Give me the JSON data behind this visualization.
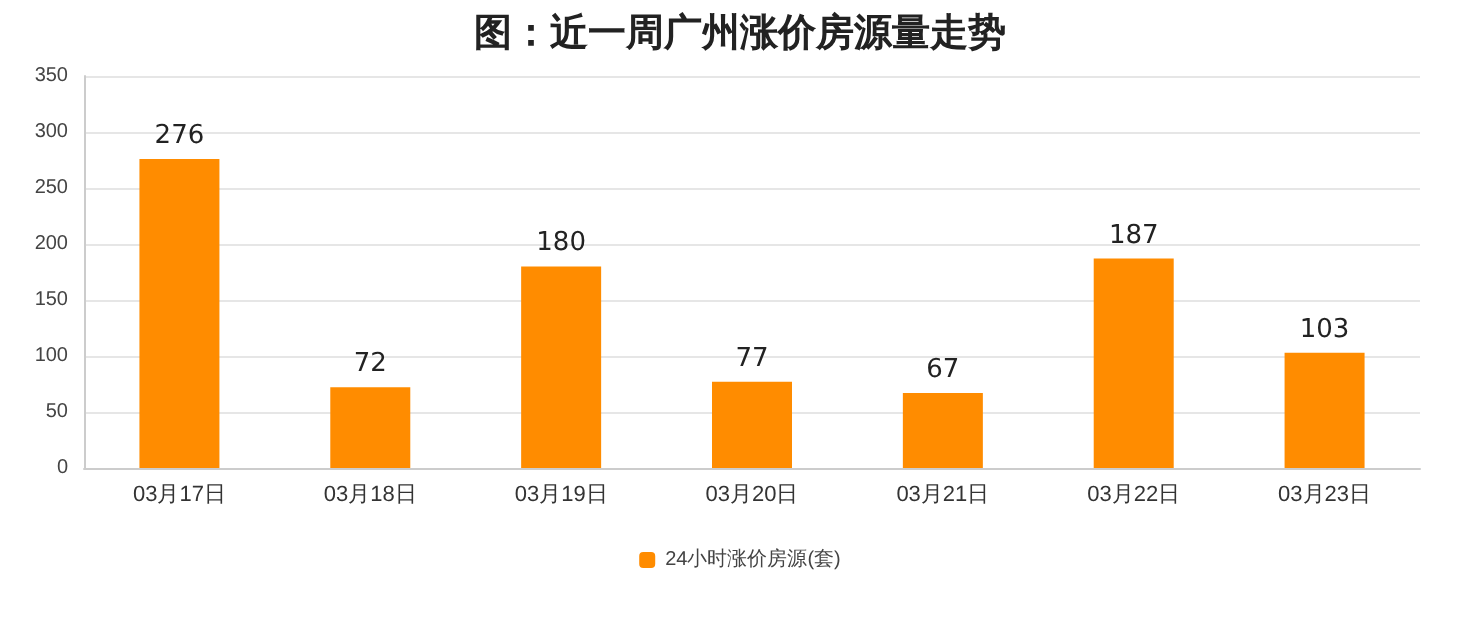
{
  "chart_data": {
    "type": "bar",
    "title": "图：近一周广州涨价房源量走势",
    "categories": [
      "03月17日",
      "03月18日",
      "03月19日",
      "03月20日",
      "03月21日",
      "03月22日",
      "03月23日"
    ],
    "series": [
      {
        "name": "24小时涨价房源(套)",
        "color": "#ff8c00",
        "values": [
          276,
          72,
          180,
          77,
          67,
          187,
          103
        ]
      }
    ],
    "ylim": [
      0,
      350
    ],
    "yticks": [
      0,
      50,
      100,
      150,
      200,
      250,
      300,
      350
    ],
    "grid": "y",
    "legend": "bottom",
    "data_labels": true
  }
}
